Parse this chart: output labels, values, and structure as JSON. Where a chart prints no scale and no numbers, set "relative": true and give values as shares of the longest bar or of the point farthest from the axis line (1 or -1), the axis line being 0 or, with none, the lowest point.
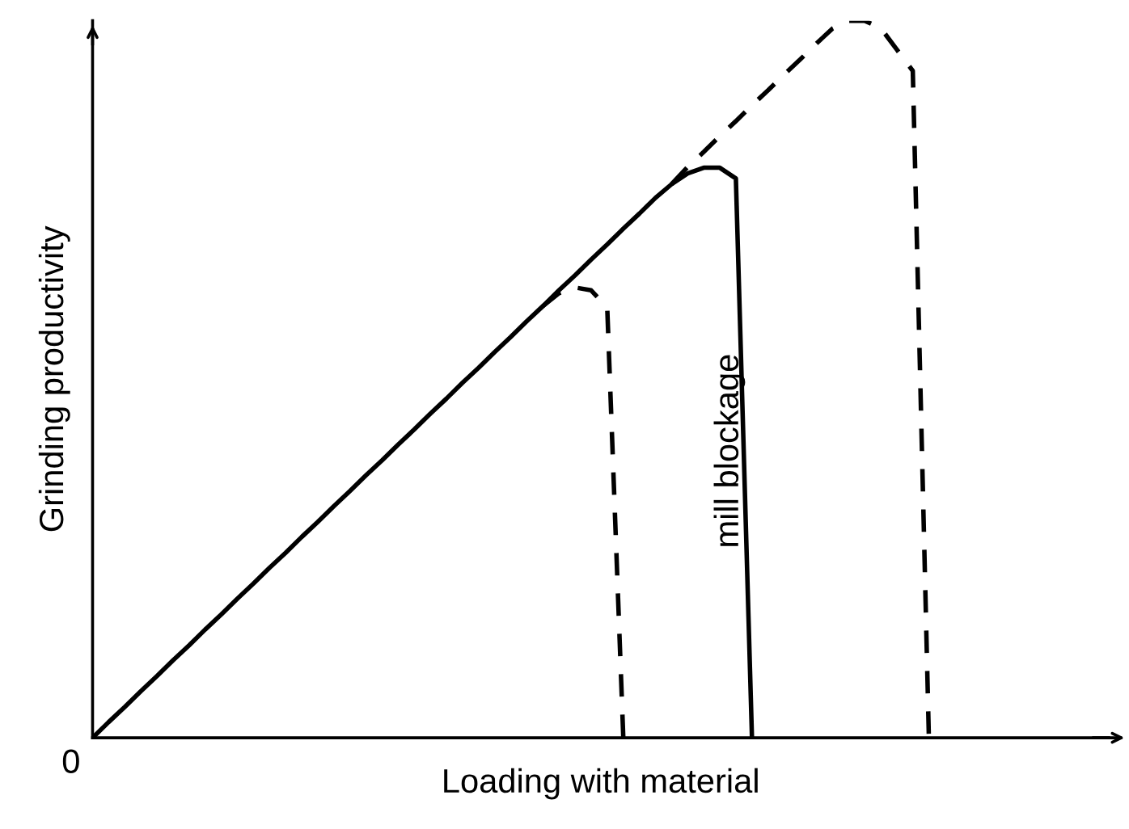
{
  "chart_data": {
    "type": "line",
    "relative": true,
    "xlabel": "Loading with material",
    "ylabel": "Grinding productivity",
    "marker": "none",
    "categories": [
      null,
      null,
      null,
      null,
      null,
      null,
      null,
      null,
      null,
      null,
      null,
      null,
      null,
      null,
      null,
      null,
      null,
      null,
      null,
      null,
      null,
      null,
      null,
      null,
      null,
      null,
      null,
      null,
      null,
      null,
      null,
      null,
      null,
      null,
      null,
      null,
      null,
      null,
      null,
      null,
      null,
      null,
      null,
      null,
      null,
      null,
      null,
      null,
      null,
      null,
      null,
      null,
      null
    ],
    "series": [
      {
        "color": "#000000",
        "line_style": "solid",
        "values": [
          0,
          0.022,
          0.043,
          0.065,
          0.086,
          0.108,
          0.129,
          0.151,
          0.172,
          0.194,
          0.215,
          0.237,
          0.258,
          0.28,
          0.301,
          0.323,
          0.344,
          0.366,
          0.387,
          0.409,
          0.43,
          0.452,
          0.473,
          0.495,
          0.516,
          0.538,
          0.559,
          0.581,
          0.602,
          0.624,
          0.645,
          0.667,
          0.688,
          0.71,
          0.731,
          0.753,
          0.772,
          0.787,
          0.795,
          0.795,
          0.78,
          0,
          null,
          null,
          null,
          null,
          null,
          null,
          null,
          null,
          null,
          null,
          null
        ]
      },
      {
        "color": "#000000",
        "line_style": "dashed",
        "values": [
          null,
          null,
          null,
          null,
          null,
          null,
          null,
          null,
          null,
          null,
          null,
          null,
          null,
          null,
          null,
          null,
          null,
          null,
          null,
          null,
          null,
          null,
          null,
          null,
          null,
          null,
          null,
          null,
          0.602,
          0.62,
          0.628,
          0.624,
          0.6,
          0,
          null,
          null,
          null,
          null,
          null,
          null,
          null,
          null,
          null,
          null,
          null,
          null,
          null,
          null,
          null,
          null,
          null,
          null,
          null
        ]
      },
      {
        "color": "#000000",
        "line_style": "dashed",
        "values": [
          null,
          null,
          null,
          null,
          null,
          null,
          null,
          null,
          null,
          null,
          null,
          null,
          null,
          null,
          null,
          null,
          null,
          null,
          null,
          null,
          null,
          null,
          null,
          null,
          null,
          null,
          null,
          null,
          null,
          null,
          null,
          null,
          null,
          null,
          null,
          null,
          0.772,
          0.796,
          0.817,
          0.839,
          0.86,
          0.882,
          0.903,
          0.925,
          0.946,
          0.968,
          0.989,
          1.0,
          1.0,
          0.99,
          0.96,
          0.93,
          0
        ]
      }
    ],
    "annotations": [
      "mill blockage",
      "0"
    ]
  }
}
